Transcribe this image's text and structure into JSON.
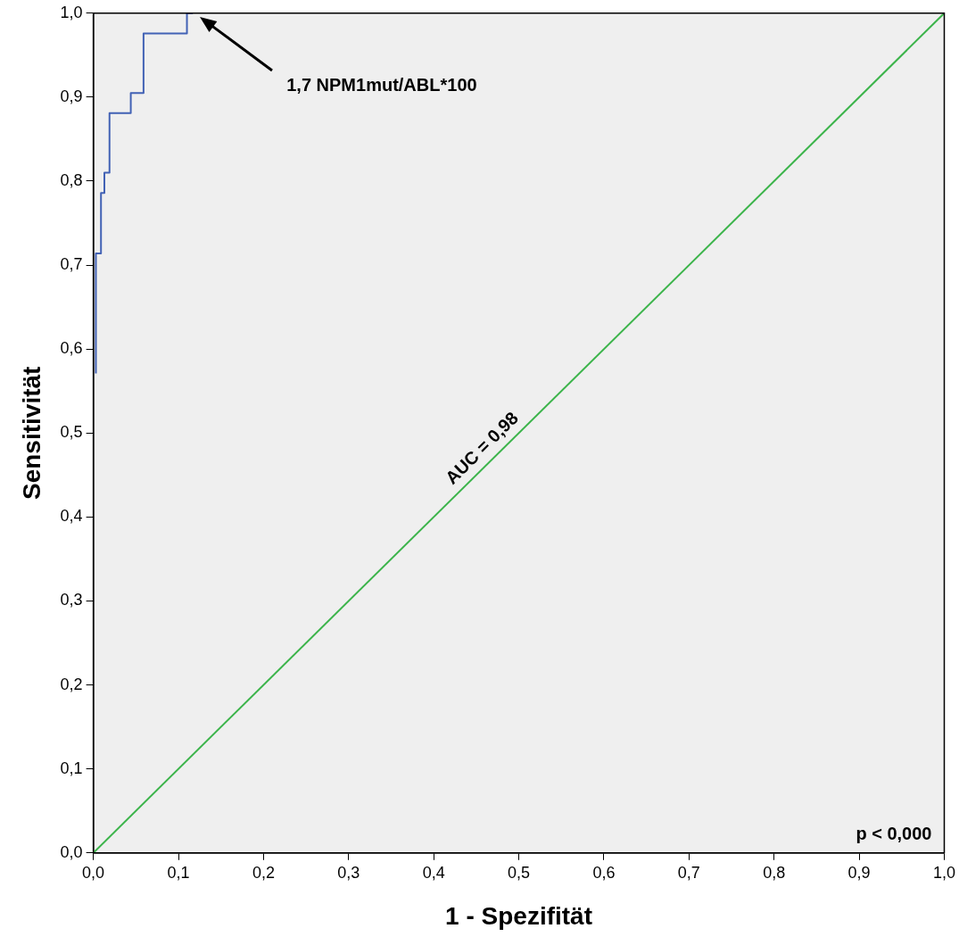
{
  "chart_data": {
    "type": "line",
    "xlabel": "1 - Spezifität",
    "ylabel": "Sensitivität",
    "xlim": [
      0,
      1
    ],
    "ylim": [
      0,
      1
    ],
    "xticks": [
      {
        "value": 0,
        "label": "0,0"
      },
      {
        "value": 0.1,
        "label": "0,1"
      },
      {
        "value": 0.2,
        "label": "0,2"
      },
      {
        "value": 0.3,
        "label": "0,3"
      },
      {
        "value": 0.4,
        "label": "0,4"
      },
      {
        "value": 0.5,
        "label": "0,5"
      },
      {
        "value": 0.6,
        "label": "0,6"
      },
      {
        "value": 0.7,
        "label": "0,7"
      },
      {
        "value": 0.8,
        "label": "0,8"
      },
      {
        "value": 0.9,
        "label": "0,9"
      },
      {
        "value": 1,
        "label": "1,0"
      }
    ],
    "yticks": [
      {
        "value": 0,
        "label": "0,0"
      },
      {
        "value": 0.1,
        "label": "0,1"
      },
      {
        "value": 0.2,
        "label": "0,2"
      },
      {
        "value": 0.3,
        "label": "0,3"
      },
      {
        "value": 0.4,
        "label": "0,4"
      },
      {
        "value": 0.5,
        "label": "0,5"
      },
      {
        "value": 0.6,
        "label": "0,6"
      },
      {
        "value": 0.7,
        "label": "0,7"
      },
      {
        "value": 0.8,
        "label": "0,8"
      },
      {
        "value": 0.9,
        "label": "0,9"
      },
      {
        "value": 1,
        "label": "1,0"
      }
    ],
    "series": [
      {
        "type": "step",
        "color": "#4262b5",
        "x": [
          0.003,
          0.003,
          0.009,
          0.013,
          0.019,
          0.044,
          0.059,
          0.11,
          0.117
        ],
        "values": [
          0.571,
          0.69,
          0.714,
          0.786,
          0.81,
          0.881,
          0.905,
          0.976,
          1.0
        ]
      },
      {
        "color": "#3cb44b",
        "x": [
          0,
          1
        ],
        "values": [
          0,
          1
        ]
      }
    ],
    "annotations": [
      "1,7 NPM1mut/ABL*100",
      {
        "text": "AUC = 0,98",
        "x": 0.43,
        "y": 0.43
      },
      "p < 0,000"
    ],
    "grid": false,
    "legend": false,
    "marker": "none"
  }
}
